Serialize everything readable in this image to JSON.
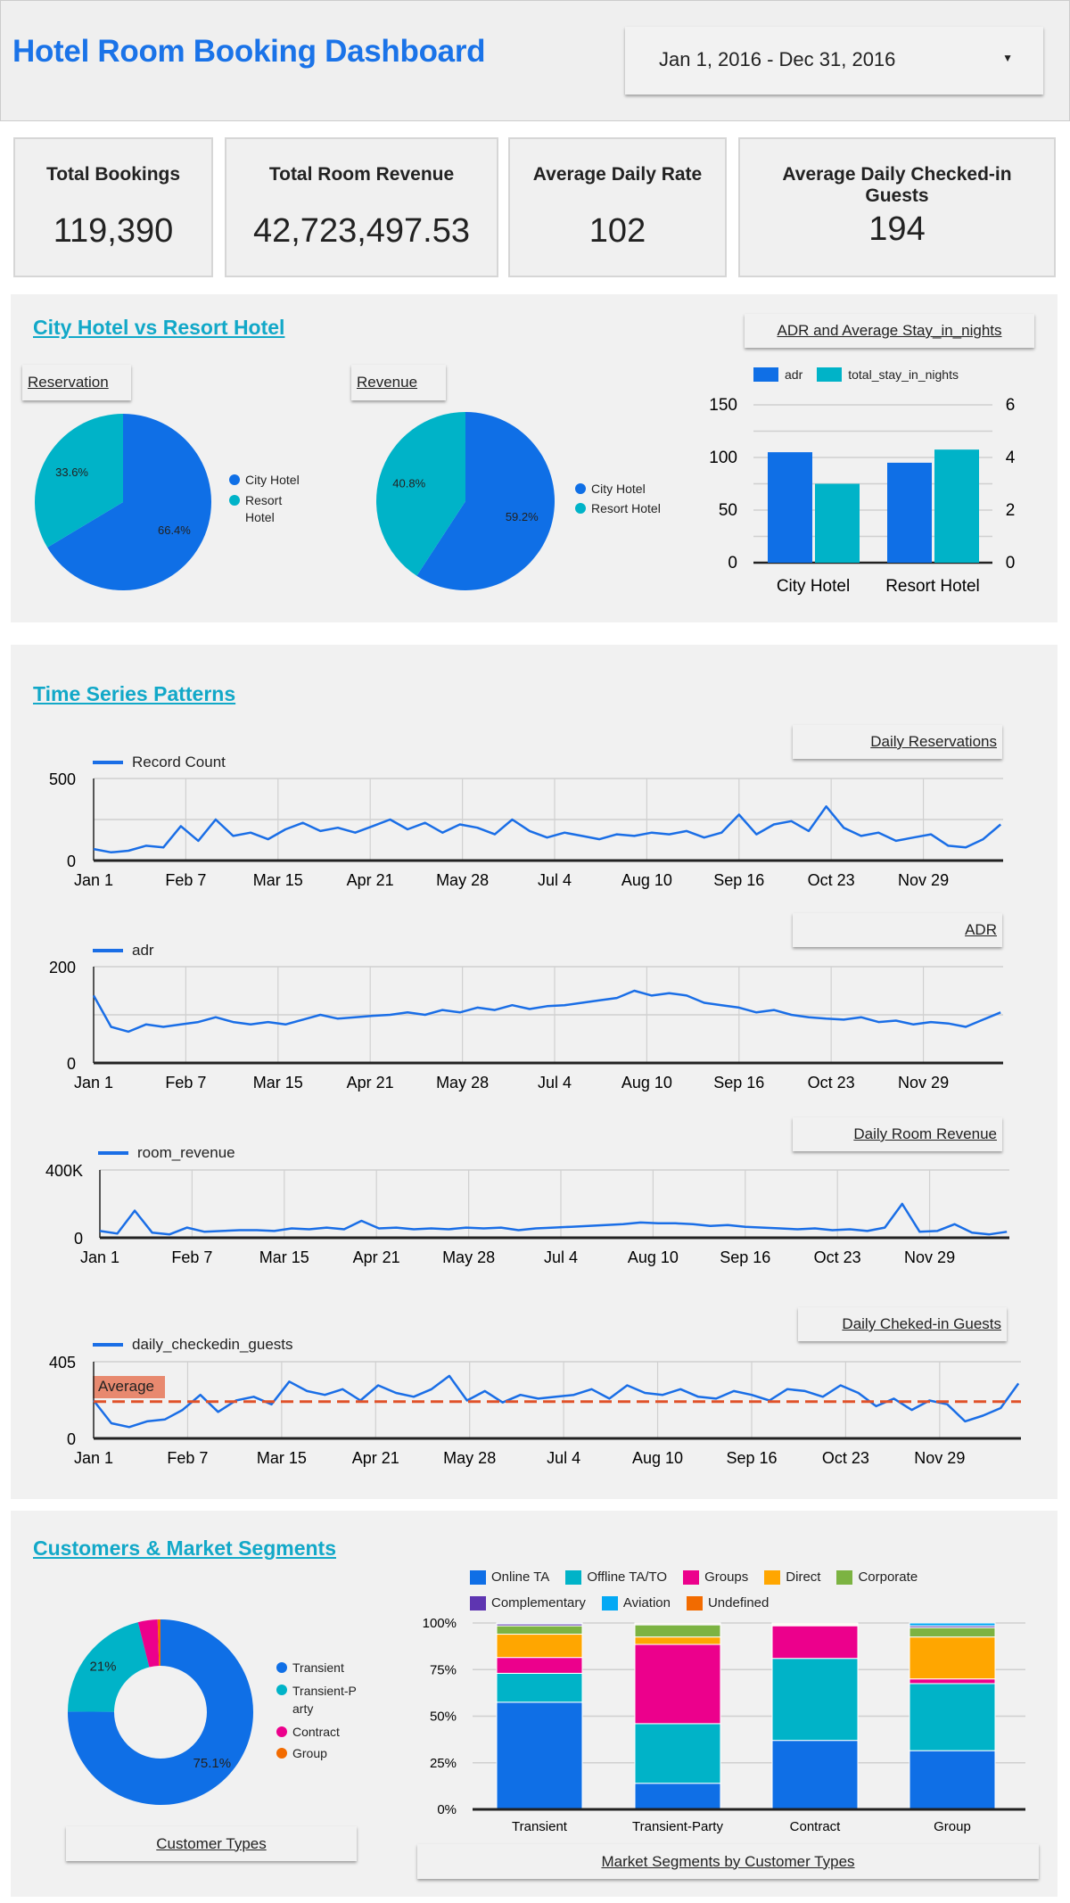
{
  "header": {
    "title": "Hotel Room Booking Dashboard",
    "date_range": "Jan 1, 2016 - Dec 31, 2016"
  },
  "kpis": [
    {
      "label": "Total Bookings",
      "value": "119,390"
    },
    {
      "label": "Total Room Revenue",
      "value": "42,723,497.53"
    },
    {
      "label": "Average Daily Rate",
      "value": "102"
    },
    {
      "label": "Average Daily Checked-in Guests",
      "value": "194"
    }
  ],
  "sections": {
    "hotels": "City Hotel vs Resort Hotel",
    "timeseries": "Time Series Patterns",
    "customers": "Customers & Market Segments"
  },
  "colors": {
    "blue": "#0f6fe6",
    "teal": "#00b3c8",
    "title_blue": "#1a73e8",
    "section_teal": "#12a8c8",
    "average": "#e0522a"
  },
  "chart_data": [
    {
      "id": "reservation",
      "type": "pie",
      "title": "Reservation",
      "slices": [
        {
          "label": "City Hotel",
          "value": 66.4,
          "display": "66.4%",
          "color": "#0f6fe6"
        },
        {
          "label": "Resort Hotel",
          "value": 33.6,
          "display": "33.6%",
          "color": "#00b3c8"
        }
      ],
      "legend": "right"
    },
    {
      "id": "revenue",
      "type": "pie",
      "title": "Revenue",
      "slices": [
        {
          "label": "City Hotel",
          "value": 59.2,
          "display": "59.2%",
          "color": "#0f6fe6"
        },
        {
          "label": "Resort Hotel",
          "value": 40.8,
          "display": "40.8%",
          "color": "#00b3c8"
        }
      ],
      "legend": "right"
    },
    {
      "id": "adr_stay",
      "type": "bar",
      "title": "ADR and Average Stay_in_nights",
      "categories": [
        "City Hotel",
        "Resort Hotel"
      ],
      "series": [
        {
          "name": "adr",
          "values": [
            105,
            95
          ],
          "color": "#0f6fe6",
          "axis": "left"
        },
        {
          "name": "total_stay_in_nights",
          "values": [
            3.0,
            4.3
          ],
          "color": "#00b3c8",
          "axis": "right"
        }
      ],
      "ylim_left": [
        0,
        150
      ],
      "yticks_left": [
        "0",
        "50",
        "100",
        "150"
      ],
      "ylim_right": [
        0,
        6
      ],
      "yticks_right": [
        "0",
        "2",
        "4",
        "6"
      ],
      "grid": true,
      "legend": "top"
    },
    {
      "id": "daily_reservations",
      "type": "line",
      "title": "Daily Reservations",
      "series_name": "Record Count",
      "ylim": [
        0,
        500
      ],
      "yticks": [
        "0",
        "500"
      ],
      "xticks": [
        "Jan 1",
        "Feb 7",
        "Mar 15",
        "Apr 21",
        "May 28",
        "Jul 4",
        "Aug 10",
        "Sep 16",
        "Oct 23",
        "Nov 29"
      ],
      "x": [
        "2016-01-01",
        "2016-01-08",
        "2016-01-15",
        "2016-01-22",
        "2016-01-29",
        "2016-02-05",
        "2016-02-12",
        "2016-02-19",
        "2016-02-26",
        "2016-03-04",
        "2016-03-11",
        "2016-03-18",
        "2016-03-25",
        "2016-04-01",
        "2016-04-08",
        "2016-04-15",
        "2016-04-22",
        "2016-04-29",
        "2016-05-06",
        "2016-05-13",
        "2016-05-20",
        "2016-05-27",
        "2016-06-03",
        "2016-06-10",
        "2016-06-17",
        "2016-06-24",
        "2016-07-01",
        "2016-07-08",
        "2016-07-15",
        "2016-07-22",
        "2016-07-29",
        "2016-08-05",
        "2016-08-12",
        "2016-08-19",
        "2016-08-26",
        "2016-09-02",
        "2016-09-09",
        "2016-09-16",
        "2016-09-23",
        "2016-09-30",
        "2016-10-07",
        "2016-10-14",
        "2016-10-21",
        "2016-10-28",
        "2016-11-04",
        "2016-11-11",
        "2016-11-18",
        "2016-11-25",
        "2016-12-02",
        "2016-12-09",
        "2016-12-16",
        "2016-12-23",
        "2016-12-30"
      ],
      "values": [
        70,
        50,
        60,
        90,
        80,
        210,
        120,
        250,
        150,
        170,
        130,
        190,
        230,
        180,
        200,
        170,
        210,
        250,
        190,
        230,
        170,
        220,
        200,
        160,
        250,
        180,
        140,
        170,
        150,
        130,
        160,
        150,
        170,
        160,
        180,
        140,
        170,
        280,
        160,
        220,
        240,
        180,
        330,
        200,
        150,
        170,
        120,
        140,
        160,
        90,
        80,
        130,
        220
      ],
      "grid": true,
      "legend": "top-left"
    },
    {
      "id": "adr",
      "type": "line",
      "title": "ADR",
      "series_name": "adr",
      "ylim": [
        0,
        200
      ],
      "yticks": [
        "0",
        "200"
      ],
      "xticks": [
        "Jan 1",
        "Feb 7",
        "Mar 15",
        "Apr 21",
        "May 28",
        "Jul 4",
        "Aug 10",
        "Sep 16",
        "Oct 23",
        "Nov 29"
      ],
      "x": [
        "2016-01-01",
        "2016-01-08",
        "2016-01-15",
        "2016-01-22",
        "2016-01-29",
        "2016-02-05",
        "2016-02-12",
        "2016-02-19",
        "2016-02-26",
        "2016-03-04",
        "2016-03-11",
        "2016-03-18",
        "2016-03-25",
        "2016-04-01",
        "2016-04-08",
        "2016-04-15",
        "2016-04-22",
        "2016-04-29",
        "2016-05-06",
        "2016-05-13",
        "2016-05-20",
        "2016-05-27",
        "2016-06-03",
        "2016-06-10",
        "2016-06-17",
        "2016-06-24",
        "2016-07-01",
        "2016-07-08",
        "2016-07-15",
        "2016-07-22",
        "2016-07-29",
        "2016-08-05",
        "2016-08-12",
        "2016-08-19",
        "2016-08-26",
        "2016-09-02",
        "2016-09-09",
        "2016-09-16",
        "2016-09-23",
        "2016-09-30",
        "2016-10-07",
        "2016-10-14",
        "2016-10-21",
        "2016-10-28",
        "2016-11-04",
        "2016-11-11",
        "2016-11-18",
        "2016-11-25",
        "2016-12-02",
        "2016-12-09",
        "2016-12-16",
        "2016-12-23",
        "2016-12-30"
      ],
      "values": [
        140,
        75,
        65,
        80,
        75,
        80,
        85,
        95,
        85,
        80,
        85,
        80,
        90,
        100,
        92,
        95,
        98,
        100,
        105,
        100,
        110,
        105,
        115,
        110,
        120,
        112,
        118,
        120,
        125,
        130,
        135,
        150,
        140,
        145,
        140,
        125,
        120,
        115,
        105,
        110,
        100,
        95,
        92,
        90,
        95,
        85,
        88,
        80,
        85,
        82,
        75,
        90,
        105
      ],
      "grid": true,
      "legend": "top-left"
    },
    {
      "id": "daily_room_revenue",
      "type": "line",
      "title": "Daily Room Revenue",
      "series_name": "room_revenue",
      "ylim": [
        0,
        400000
      ],
      "yticks": [
        "0",
        "400K"
      ],
      "xticks": [
        "Jan 1",
        "Feb 7",
        "Mar 15",
        "Apr 21",
        "May 28",
        "Jul 4",
        "Aug 10",
        "Sep 16",
        "Oct 23",
        "Nov 29"
      ],
      "x": [
        "2016-01-01",
        "2016-01-08",
        "2016-01-15",
        "2016-01-22",
        "2016-01-29",
        "2016-02-05",
        "2016-02-12",
        "2016-02-19",
        "2016-02-26",
        "2016-03-04",
        "2016-03-11",
        "2016-03-18",
        "2016-03-25",
        "2016-04-01",
        "2016-04-08",
        "2016-04-15",
        "2016-04-22",
        "2016-04-29",
        "2016-05-06",
        "2016-05-13",
        "2016-05-20",
        "2016-05-27",
        "2016-06-03",
        "2016-06-10",
        "2016-06-17",
        "2016-06-24",
        "2016-07-01",
        "2016-07-08",
        "2016-07-15",
        "2016-07-22",
        "2016-07-29",
        "2016-08-05",
        "2016-08-12",
        "2016-08-19",
        "2016-08-26",
        "2016-09-02",
        "2016-09-09",
        "2016-09-16",
        "2016-09-23",
        "2016-09-30",
        "2016-10-07",
        "2016-10-14",
        "2016-10-21",
        "2016-10-28",
        "2016-11-04",
        "2016-11-11",
        "2016-11-18",
        "2016-11-25",
        "2016-12-02",
        "2016-12-09",
        "2016-12-16",
        "2016-12-23",
        "2016-12-30"
      ],
      "values": [
        40000,
        25000,
        160000,
        30000,
        20000,
        60000,
        35000,
        40000,
        45000,
        45000,
        40000,
        55000,
        50000,
        60000,
        50000,
        100000,
        55000,
        60000,
        50000,
        55000,
        50000,
        60000,
        55000,
        60000,
        45000,
        55000,
        60000,
        65000,
        70000,
        75000,
        80000,
        90000,
        85000,
        85000,
        80000,
        70000,
        75000,
        65000,
        60000,
        55000,
        50000,
        55000,
        45000,
        50000,
        40000,
        60000,
        200000,
        35000,
        40000,
        80000,
        30000,
        20000,
        35000
      ],
      "grid": true,
      "legend": "top-left"
    },
    {
      "id": "daily_checked_in_guests",
      "type": "line",
      "title": "Daily Cheked-in Guests",
      "series_name": "daily_checkedin_guests",
      "ylim": [
        0,
        405
      ],
      "yticks": [
        "0",
        "405"
      ],
      "xticks": [
        "Jan 1",
        "Feb 7",
        "Mar 15",
        "Apr 21",
        "May 28",
        "Jul 4",
        "Aug 10",
        "Sep 16",
        "Oct 23",
        "Nov 29"
      ],
      "x": [
        "2016-01-01",
        "2016-01-08",
        "2016-01-15",
        "2016-01-22",
        "2016-01-29",
        "2016-02-05",
        "2016-02-12",
        "2016-02-19",
        "2016-02-26",
        "2016-03-04",
        "2016-03-11",
        "2016-03-18",
        "2016-03-25",
        "2016-04-01",
        "2016-04-08",
        "2016-04-15",
        "2016-04-22",
        "2016-04-29",
        "2016-05-06",
        "2016-05-13",
        "2016-05-20",
        "2016-05-27",
        "2016-06-03",
        "2016-06-10",
        "2016-06-17",
        "2016-06-24",
        "2016-07-01",
        "2016-07-08",
        "2016-07-15",
        "2016-07-22",
        "2016-07-29",
        "2016-08-05",
        "2016-08-12",
        "2016-08-19",
        "2016-08-26",
        "2016-09-02",
        "2016-09-09",
        "2016-09-16",
        "2016-09-23",
        "2016-09-30",
        "2016-10-07",
        "2016-10-14",
        "2016-10-21",
        "2016-10-28",
        "2016-11-04",
        "2016-11-11",
        "2016-11-18",
        "2016-11-25",
        "2016-12-02",
        "2016-12-09",
        "2016-12-16",
        "2016-12-23",
        "2016-12-30"
      ],
      "values": [
        200,
        80,
        60,
        90,
        100,
        150,
        230,
        140,
        200,
        220,
        180,
        300,
        250,
        230,
        260,
        200,
        280,
        240,
        220,
        260,
        330,
        200,
        250,
        190,
        230,
        210,
        220,
        230,
        260,
        210,
        280,
        240,
        230,
        260,
        220,
        210,
        250,
        230,
        200,
        260,
        250,
        220,
        280,
        240,
        170,
        210,
        150,
        200,
        180,
        90,
        120,
        160,
        290
      ],
      "reference_line": {
        "label": "Average",
        "value": 194
      },
      "grid": true,
      "legend": "top-left"
    },
    {
      "id": "customer_types",
      "type": "pie",
      "title": "Customer Types",
      "donut": true,
      "slices": [
        {
          "label": "Transient",
          "value": 75.1,
          "display": "75.1%",
          "color": "#0f6fe6"
        },
        {
          "label": "Transient-Party",
          "value": 21.0,
          "display": "21%",
          "color": "#00b3c8"
        },
        {
          "label": "Contract",
          "value": 3.4,
          "display": "",
          "color": "#ec008c"
        },
        {
          "label": "Group",
          "value": 0.5,
          "display": "",
          "color": "#f26b00"
        }
      ],
      "legend": "right"
    },
    {
      "id": "market_segments",
      "type": "bar",
      "stacked": "percent",
      "title": "Market Segments by Customer Types",
      "categories": [
        "Transient",
        "Transient-Party",
        "Contract",
        "Group"
      ],
      "series": [
        {
          "name": "Online TA",
          "color": "#0f6fe6",
          "values": [
            57.5,
            14,
            37,
            31.5
          ]
        },
        {
          "name": "Offline TA/TO",
          "color": "#00b3c8",
          "values": [
            15.5,
            32,
            44,
            36
          ]
        },
        {
          "name": "Groups",
          "color": "#ec008c",
          "values": [
            8.5,
            42.5,
            17.5,
            2.5
          ]
        },
        {
          "name": "Direct",
          "color": "#ffa600",
          "values": [
            12.5,
            4,
            0.5,
            22.5
          ]
        },
        {
          "name": "Corporate",
          "color": "#7cb342",
          "values": [
            4.5,
            6.5,
            0.5,
            5
          ]
        },
        {
          "name": "Complementary",
          "color": "#5e35b1",
          "values": [
            1,
            0.5,
            0,
            1
          ]
        },
        {
          "name": "Aviation",
          "color": "#03a9f4",
          "values": [
            0.5,
            0,
            0,
            1.5
          ]
        },
        {
          "name": "Undefined",
          "color": "#f26b00",
          "values": [
            0,
            0.5,
            0.5,
            0
          ]
        }
      ],
      "ylim": [
        0,
        100
      ],
      "yticks": [
        "0%",
        "25%",
        "50%",
        "75%",
        "100%"
      ],
      "grid": true,
      "legend": "top"
    }
  ]
}
